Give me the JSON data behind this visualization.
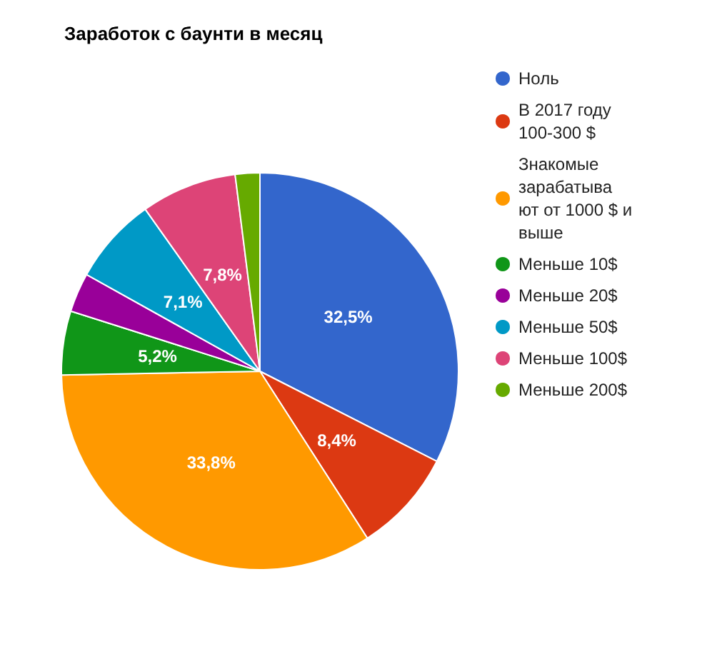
{
  "chart_data": {
    "type": "pie",
    "title": "Заработок с баунти в месяц",
    "categories": [
      "Ноль",
      "В 2017 году 100-300 $",
      "Знакомые зарабатывают от 1000 $ и выше",
      "Меньше 10$",
      "Меньше 20$",
      "Меньше 50$",
      "Меньше 100$",
      "Меньше 200$"
    ],
    "values": [
      32.5,
      8.4,
      33.8,
      5.2,
      3.2,
      7.1,
      7.8,
      2.0
    ],
    "value_labels": [
      "32,5%",
      "8,4%",
      "33,8%",
      "5,2%",
      null,
      "7,1%",
      "7,8%",
      null
    ],
    "colors": [
      "#3366cc",
      "#dc3912",
      "#ff9900",
      "#109618",
      "#990099",
      "#0099c6",
      "#dd4477",
      "#66aa00"
    ],
    "legend": "top right"
  }
}
